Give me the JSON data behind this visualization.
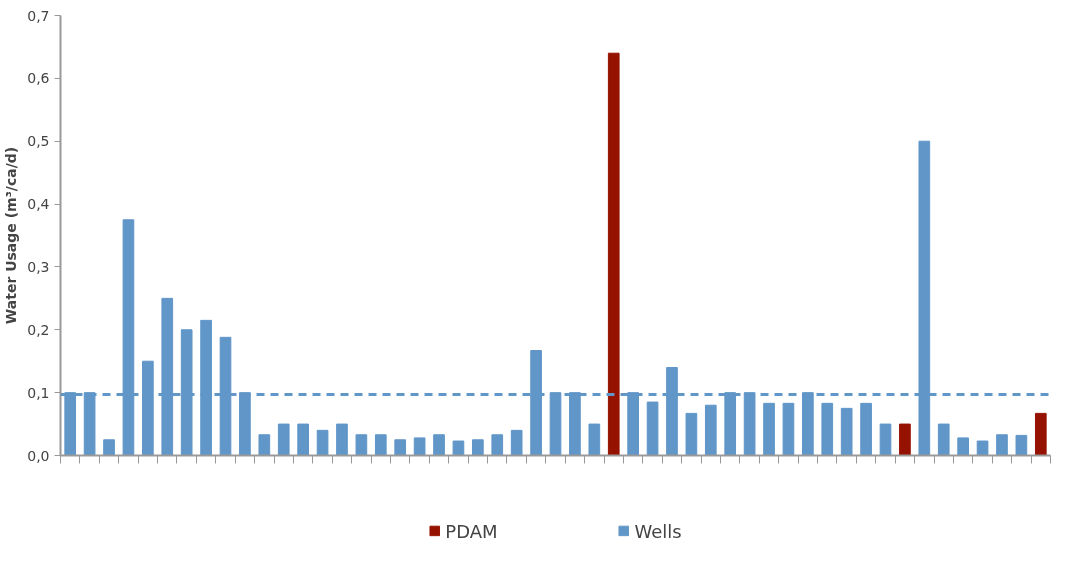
{
  "chart_data": {
    "type": "bar",
    "ylabel": "Water Usage (m³/ca/d)",
    "categories": [
      null,
      null,
      null,
      null,
      null,
      null,
      null,
      null,
      null,
      null,
      null,
      null,
      null,
      null,
      null,
      null,
      null,
      null,
      null,
      null,
      null,
      null,
      null,
      null,
      null,
      null,
      null,
      null,
      null,
      null,
      null,
      null,
      null,
      null,
      null,
      null,
      null,
      null,
      null,
      null,
      null,
      null,
      null,
      null,
      null,
      null,
      null,
      null,
      null,
      null,
      null
    ],
    "series": [
      {
        "name": "PDAM",
        "color": "#961200",
        "values": [
          null,
          null,
          null,
          null,
          null,
          null,
          null,
          null,
          null,
          null,
          null,
          null,
          null,
          null,
          null,
          null,
          null,
          null,
          null,
          null,
          null,
          null,
          null,
          null,
          null,
          null,
          null,
          null,
          0.64,
          null,
          null,
          null,
          null,
          null,
          null,
          null,
          null,
          null,
          null,
          null,
          null,
          null,
          null,
          0.05,
          null,
          null,
          null,
          null,
          null,
          null,
          0.067
        ]
      },
      {
        "name": "Wells",
        "color": "#6096c8",
        "values": [
          0.1,
          0.1,
          0.025,
          0.375,
          0.15,
          0.25,
          0.2,
          0.215,
          0.188,
          0.1,
          0.033,
          0.05,
          0.05,
          0.04,
          0.05,
          0.033,
          0.033,
          0.025,
          0.028,
          0.033,
          0.023,
          0.025,
          0.033,
          0.04,
          0.167,
          0.1,
          0.1,
          0.05,
          null,
          0.1,
          0.085,
          0.14,
          0.067,
          0.08,
          0.1,
          0.1,
          0.083,
          0.083,
          0.1,
          0.083,
          0.075,
          0.083,
          0.05,
          null,
          0.5,
          0.05,
          0.028,
          0.023,
          0.033,
          0.032,
          null
        ]
      }
    ],
    "ylim": [
      0,
      0.7
    ],
    "yticks": [
      {
        "value": 0,
        "label": "0,0"
      },
      {
        "value": 0.1,
        "label": "0,1"
      },
      {
        "value": 0.2,
        "label": "0,2"
      },
      {
        "value": 0.3,
        "label": "0,3"
      },
      {
        "value": 0.4,
        "label": "0,4"
      },
      {
        "value": 0.5,
        "label": "0,5"
      },
      {
        "value": 0.6,
        "label": "0,6"
      },
      {
        "value": 0.7,
        "label": "0,7"
      }
    ],
    "ref_lines": [
      {
        "axis": "y",
        "value": 0.097,
        "color": "#6096c8",
        "line_style": "dashed"
      }
    ],
    "tick_labels": "y",
    "grid": false,
    "legend": "bottom"
  }
}
